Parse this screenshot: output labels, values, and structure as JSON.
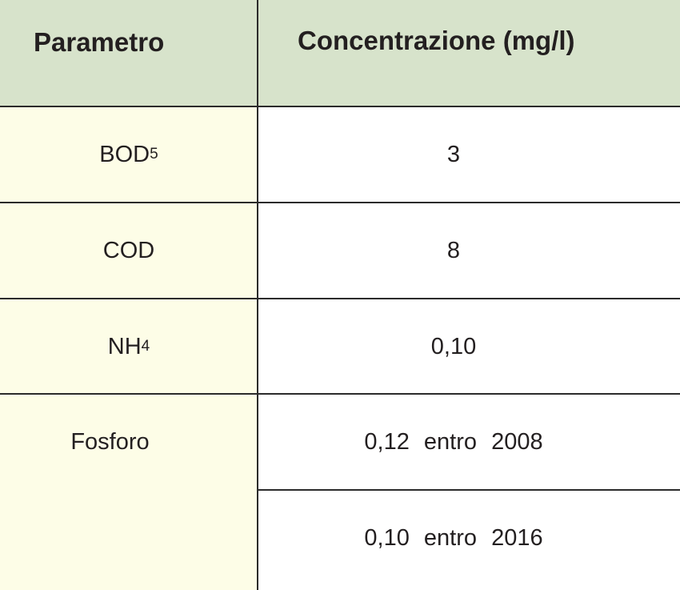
{
  "table": {
    "header": [
      "Parametro",
      "Concentrazione (mg/l)"
    ],
    "rows": [
      {
        "parameter": "BOD",
        "subscript": "5",
        "values": [
          "3"
        ]
      },
      {
        "parameter": "COD",
        "values": [
          "8"
        ]
      },
      {
        "parameter": "NH",
        "subscript": "4",
        "values": [
          "0,10"
        ]
      },
      {
        "parameter": "Fosforo",
        "values": [
          "0,12 entro 2008",
          "0,10 entro 2016"
        ]
      }
    ]
  }
}
